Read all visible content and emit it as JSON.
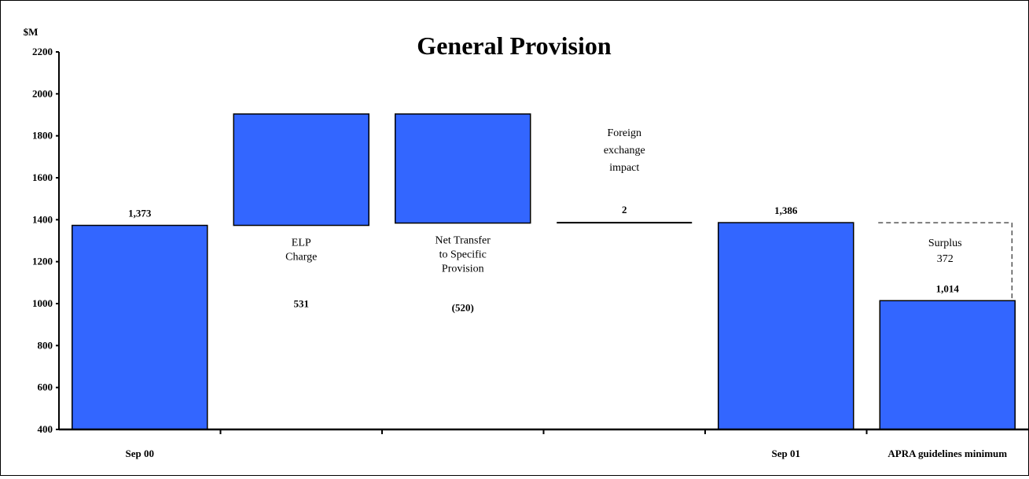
{
  "chart_data": {
    "type": "bar",
    "title": "General Provision",
    "ylabel": "$M",
    "ylim": [
      400,
      2200
    ],
    "yticks": [
      400,
      600,
      800,
      1000,
      1200,
      1400,
      1600,
      1800,
      2000,
      2200
    ],
    "grid": false,
    "colors": {
      "bar": "#3366ff",
      "edge": "#000000"
    },
    "categories": [
      "Sep 00",
      "",
      "",
      "",
      "Sep 01",
      "APRA guidelines minimum"
    ],
    "bars": [
      {
        "desc": [],
        "value_label": "1,373",
        "base": 400,
        "top": 1373
      },
      {
        "desc": [
          "ELP",
          "Charge"
        ],
        "value_label": "531",
        "base": 1373,
        "top": 1904
      },
      {
        "desc": [
          "Net Transfer",
          "to Specific",
          "Provision"
        ],
        "value_label": "(520)",
        "base": 1384,
        "top": 1904
      },
      {
        "desc": [
          "Foreign",
          "exchange",
          "impact"
        ],
        "value_label": "2",
        "base": 1384,
        "top": 1386
      },
      {
        "desc": [],
        "value_label": "1,386",
        "base": 400,
        "top": 1386
      },
      {
        "desc": [],
        "value_label": "1,014",
        "base": 400,
        "top": 1014
      }
    ],
    "surplus": {
      "desc": [
        "Surplus",
        "372"
      ],
      "from": 1014,
      "to": 1386
    }
  }
}
